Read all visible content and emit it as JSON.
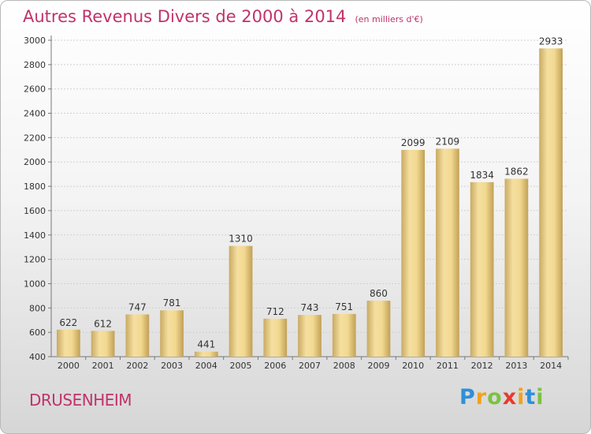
{
  "chart_data": {
    "type": "bar",
    "title": "Autres Revenus Divers de 2000 à 2014",
    "subtitle": "(en milliers d'€)",
    "categories": [
      "2000",
      "2001",
      "2002",
      "2003",
      "2004",
      "2005",
      "2006",
      "2007",
      "2008",
      "2009",
      "2010",
      "2011",
      "2012",
      "2013",
      "2014"
    ],
    "values": [
      622,
      612,
      747,
      781,
      441,
      1310,
      712,
      743,
      751,
      860,
      2099,
      2109,
      1834,
      1862,
      2933
    ],
    "data_labels": [
      "622",
      "612",
      "747",
      "781",
      "441",
      "1310",
      "712",
      "743",
      "751",
      "860",
      "2099",
      "2109",
      "1834",
      "1862",
      "2933"
    ],
    "ylim": [
      400,
      3000
    ],
    "yticks": [
      "400",
      "600",
      "800",
      "1000",
      "1200",
      "1400",
      "1600",
      "1800",
      "2000",
      "2200",
      "2400",
      "2600",
      "2800",
      "3000"
    ],
    "grid": true,
    "bar_color_light": "#f3dc96",
    "bar_color_dark": "#c8a860"
  },
  "city": "DRUSENHEIM",
  "logo": {
    "letters": [
      "P",
      "r",
      "o",
      "x",
      "i",
      "t",
      "i"
    ],
    "colors": [
      "#2f8fd8",
      "#f2a21b",
      "#7cc242",
      "#e8392d",
      "#f2a21b",
      "#2f8fd8",
      "#7cc242"
    ]
  }
}
